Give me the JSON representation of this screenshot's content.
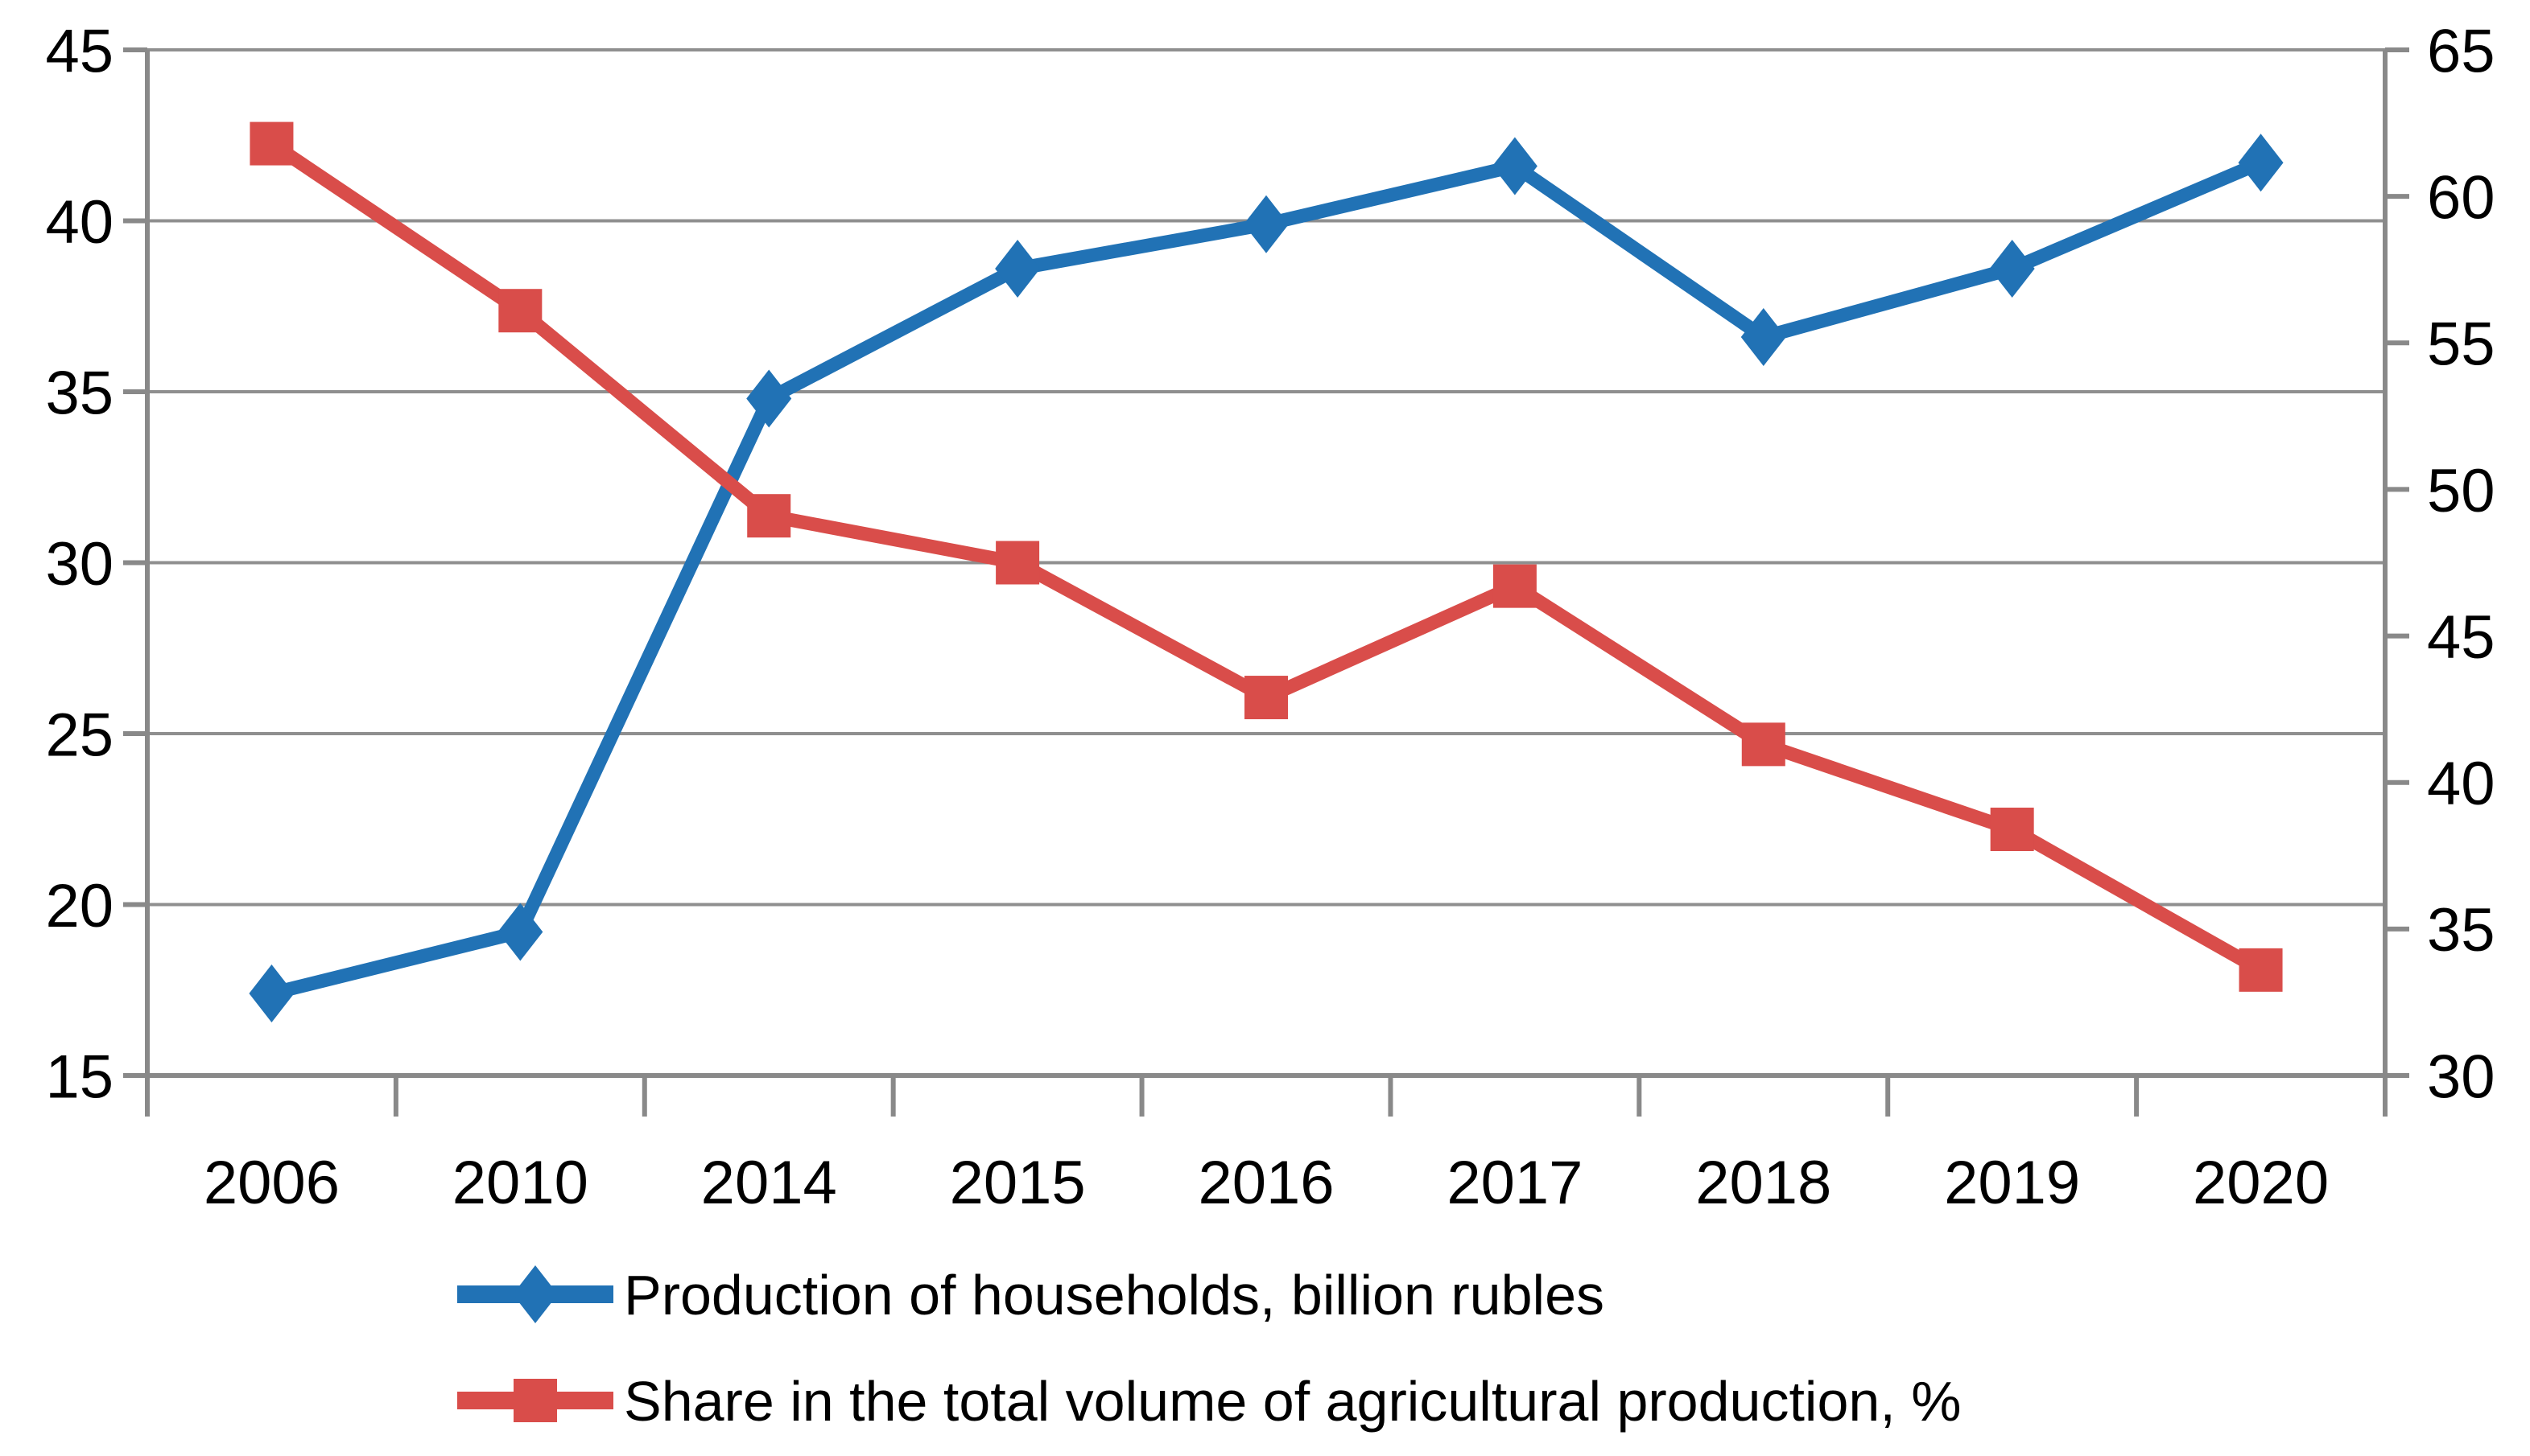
{
  "chart_data": {
    "type": "line",
    "categories": [
      "2006",
      "2010",
      "2014",
      "2015",
      "2016",
      "2017",
      "2018",
      "2019",
      "2020"
    ],
    "series": [
      {
        "name": "Production of households, billion rubles",
        "axis": "left",
        "marker": "diamond",
        "color": "#2172B5",
        "values": [
          17.4,
          19.2,
          34.8,
          38.6,
          39.9,
          41.6,
          36.6,
          38.6,
          41.7
        ]
      },
      {
        "name": "Share in the total volume of agricultural production, %",
        "axis": "right",
        "marker": "square",
        "color": "#D94D4A",
        "values": [
          61.8,
          56.1,
          49.1,
          47.5,
          42.9,
          46.7,
          41.3,
          38.4,
          33.6
        ]
      }
    ],
    "left_axis": {
      "min": 15,
      "max": 45,
      "step": 5,
      "tick_labels": [
        "45",
        "40",
        "35",
        "30",
        "25",
        "20",
        "15"
      ]
    },
    "right_axis": {
      "min": 30,
      "max": 65,
      "step": 5,
      "tick_labels": [
        "65",
        "60",
        "55",
        "50",
        "45",
        "40",
        "35",
        "30"
      ]
    },
    "grid": true,
    "legend_position": "bottom",
    "axis_color": "#898989",
    "grid_color": "#8F8F8F",
    "text_color": "#000000"
  }
}
